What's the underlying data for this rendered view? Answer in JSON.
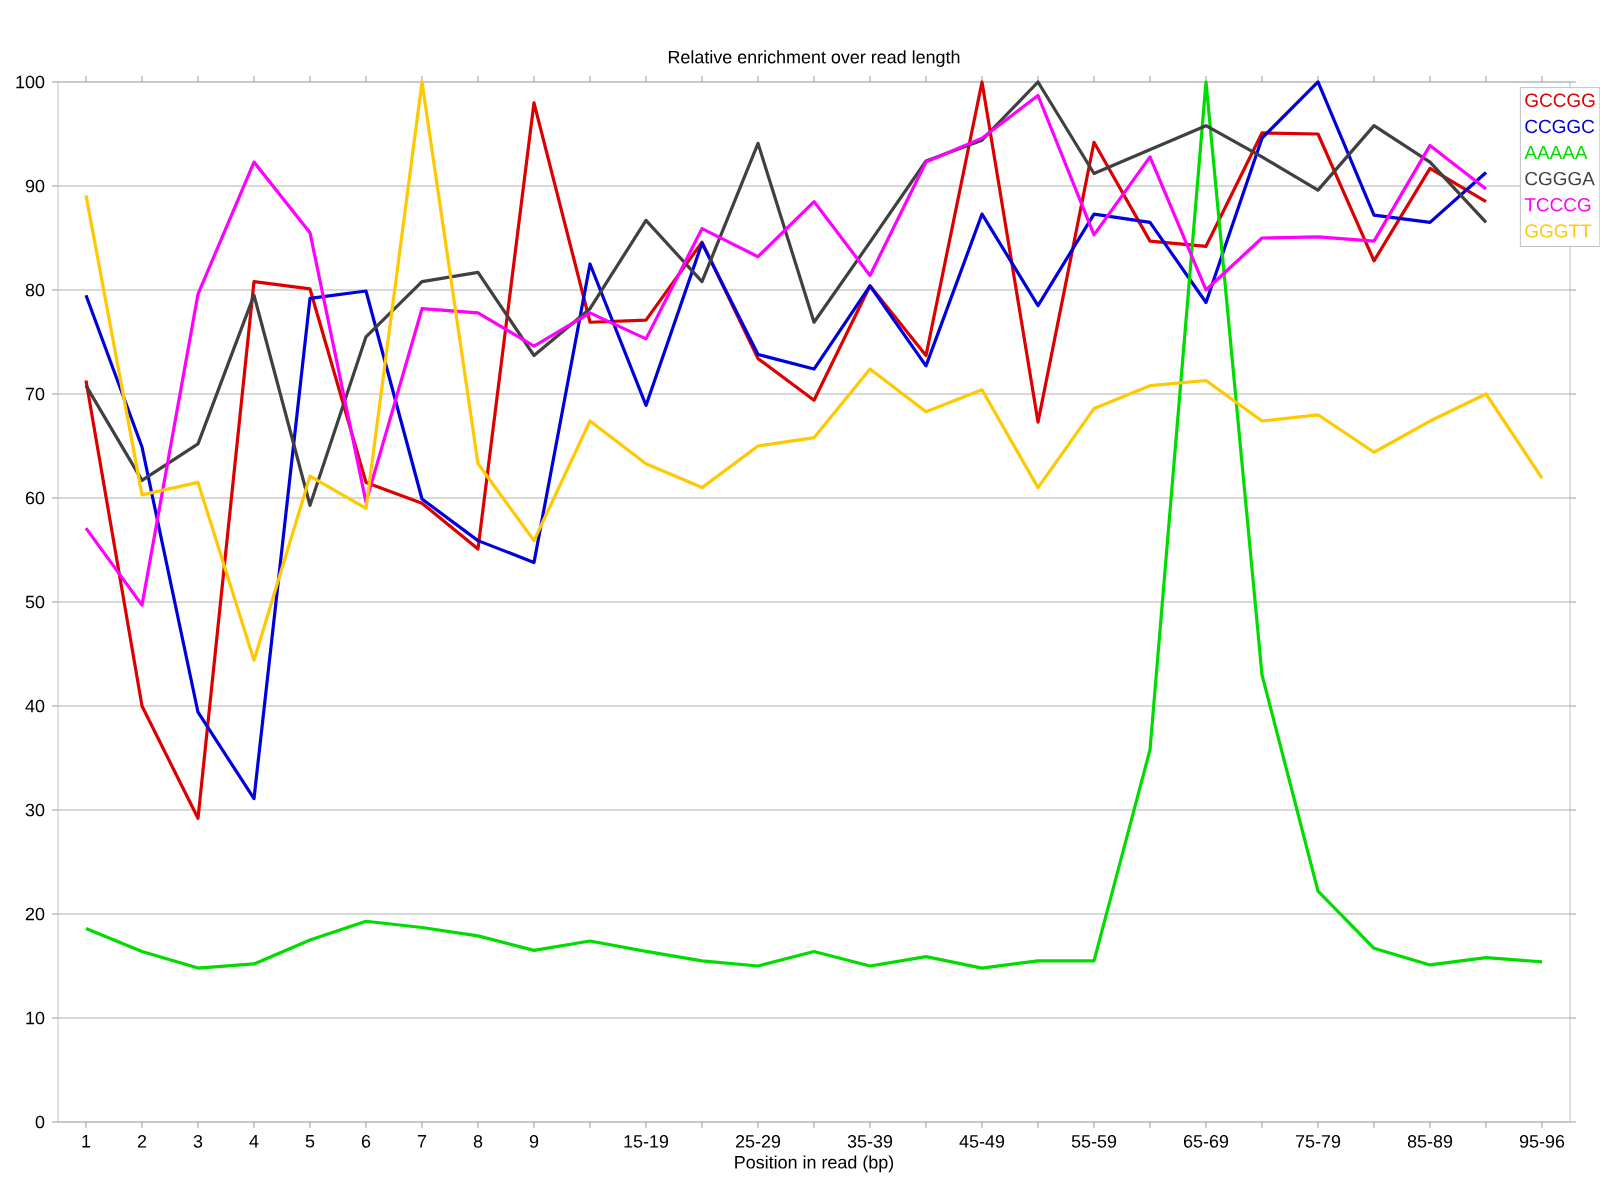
{
  "chart_data": {
    "type": "line",
    "title": "Relative enrichment over read length",
    "xlabel": "Position in read (bp)",
    "categories": [
      "1",
      "2",
      "3",
      "4",
      "5",
      "6",
      "7",
      "8",
      "9",
      null,
      "15-19",
      null,
      "25-29",
      null,
      "35-39",
      null,
      "45-49",
      null,
      "55-59",
      null,
      "65-69",
      null,
      "75-79",
      null,
      "85-89",
      null,
      "95-96"
    ],
    "series": [
      {
        "name": "GCCGG",
        "color": "#dc0000",
        "values": [
          71.3,
          40,
          29.2,
          80.8,
          80.1,
          61.5,
          59.5,
          55.1,
          98,
          76.9,
          77.1,
          84.6,
          73.4,
          69.4,
          80.4,
          73.7,
          100,
          67.3,
          94.2,
          84.7,
          84.2,
          95.1,
          95,
          82.8,
          91.7,
          88.5,
          null
        ]
      },
      {
        "name": "CCGGC",
        "color": "#0000dc",
        "values": [
          79.5,
          64.9,
          39.4,
          31.1,
          79.2,
          79.9,
          59.9,
          55.9,
          53.8,
          82.5,
          68.9,
          84.5,
          73.8,
          72.4,
          80.4,
          72.7,
          87.3,
          78.5,
          87.3,
          86.5,
          78.8,
          94.6,
          100,
          87.2,
          86.5,
          91.3,
          null
        ]
      },
      {
        "name": "AAAAA",
        "color": "#00dc00",
        "values": [
          18.6,
          16.4,
          14.8,
          15.2,
          17.5,
          19.3,
          18.7,
          17.9,
          16.5,
          17.4,
          16.4,
          15.5,
          15,
          16.4,
          15,
          15.9,
          14.8,
          15.5,
          15.5,
          35.8,
          100,
          43,
          22.2,
          16.7,
          15.1,
          15.8,
          15.4
        ]
      },
      {
        "name": "CGGGA",
        "color": "#404040",
        "values": [
          70.8,
          61.7,
          65.2,
          79.5,
          59.3,
          75.5,
          80.8,
          81.7,
          73.7,
          78.2,
          86.7,
          80.8,
          94.1,
          76.9,
          84.6,
          92.4,
          94.4,
          100,
          91.2,
          93.5,
          95.8,
          92.8,
          89.6,
          95.8,
          92.3,
          86.5,
          null
        ]
      },
      {
        "name": "TCCCG",
        "color": "#ff00ff",
        "values": [
          57.1,
          49.7,
          79.6,
          92.3,
          85.5,
          59.6,
          78.2,
          77.8,
          74.6,
          77.8,
          75.3,
          85.9,
          83.2,
          88.5,
          81.4,
          92.3,
          94.6,
          98.7,
          85.3,
          92.8,
          80,
          85,
          85.1,
          84.7,
          93.9,
          89.7,
          null
        ]
      },
      {
        "name": "GGGTT",
        "color": "#ffc800",
        "values": [
          89.1,
          60.3,
          61.5,
          44.4,
          62.1,
          59,
          100,
          63.3,
          55.9,
          67.4,
          63.3,
          61,
          65,
          65.8,
          72.4,
          68.3,
          70.4,
          61,
          68.6,
          70.8,
          71.3,
          67.4,
          68,
          64.4,
          67.4,
          70,
          61.9
        ]
      }
    ],
    "ylim": [
      0,
      100
    ],
    "yticks": [
      0,
      10,
      20,
      30,
      40,
      50,
      60,
      70,
      80,
      90,
      100
    ],
    "grid": "y",
    "legend": "top right",
    "marker": "none",
    "line_style": "solid"
  }
}
